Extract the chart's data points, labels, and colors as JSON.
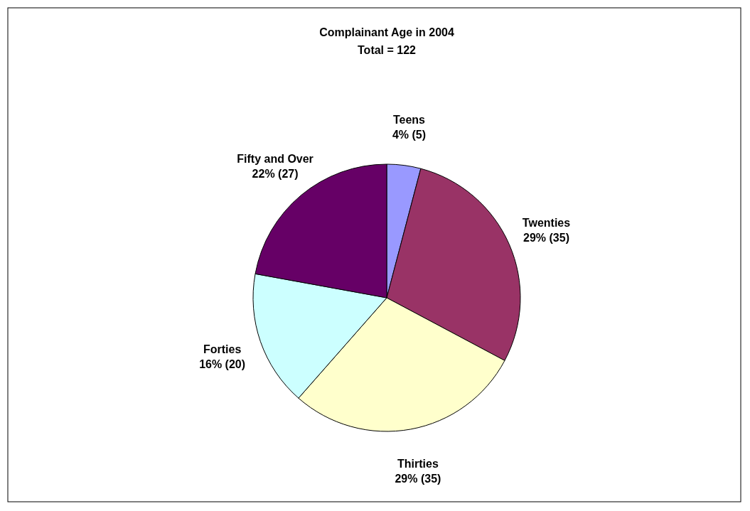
{
  "chart_data": {
    "type": "pie",
    "title": "Complainant Age in 2004",
    "subtitle": "Total = 122",
    "categories": [
      "Teens",
      "Twenties",
      "Thirties",
      "Forties",
      "Fifty and Over"
    ],
    "values": [
      5,
      35,
      35,
      20,
      27
    ],
    "colors": [
      "#9999ff",
      "#993366",
      "#ffffcc",
      "#ccffff",
      "#660066"
    ],
    "value_labels": [
      "4% (5)",
      "29% (35)",
      "29% (35)",
      "16% (20)",
      "22% (27)"
    ]
  }
}
